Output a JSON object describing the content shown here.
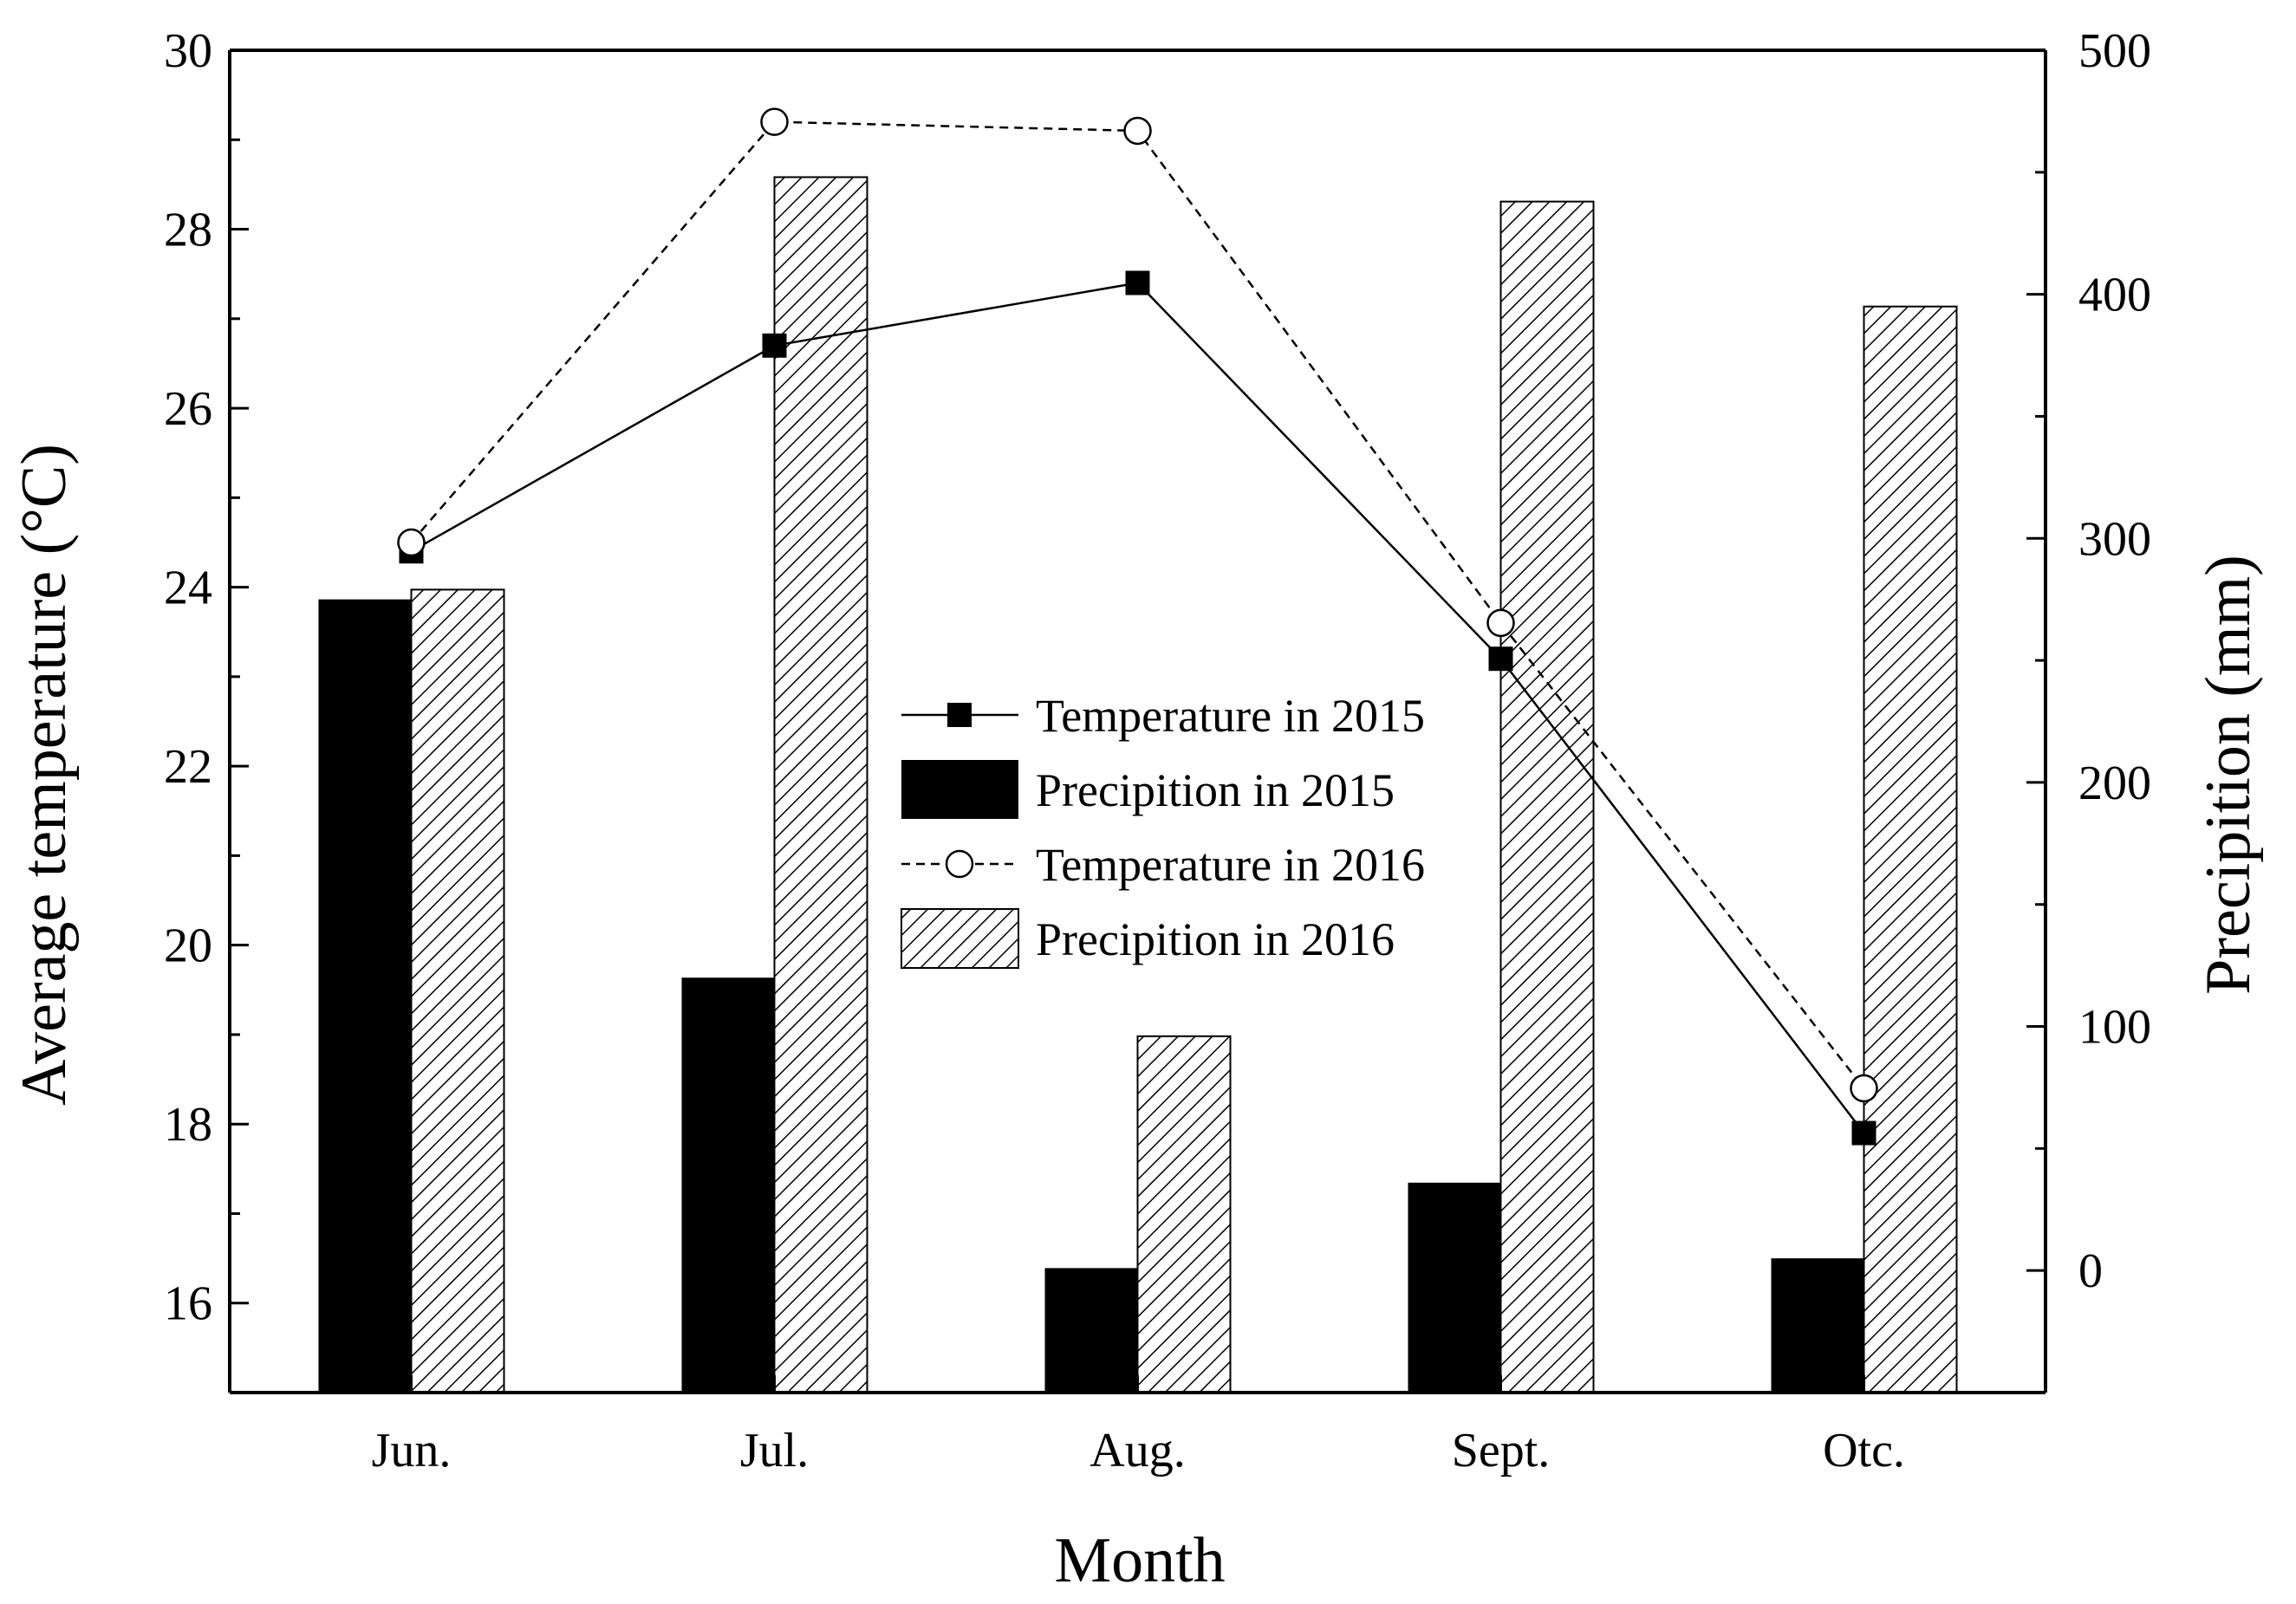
{
  "chart_data": {
    "type": "bar",
    "categories": [
      "Jun.",
      "Jul.",
      "Aug.",
      "Sept.",
      "Otc."
    ],
    "xlabel": "Month",
    "ylabel": "Average temperature (°C)",
    "y2label": "Precipition (mm)",
    "ylim": [
      15,
      30
    ],
    "y2lim": [
      -50,
      500
    ],
    "yticks": [
      16,
      18,
      20,
      22,
      24,
      26,
      28,
      30
    ],
    "y2ticks": [
      0,
      100,
      200,
      300,
      400,
      500
    ],
    "grid": false,
    "legend_position": "center",
    "series": [
      {
        "name": "Temperature in 2015",
        "kind": "line",
        "axis": "left",
        "style": "solid",
        "marker": "filled-square",
        "values": [
          24.4,
          26.7,
          27.4,
          23.2,
          17.9
        ]
      },
      {
        "name": "Precipition in 2015",
        "kind": "bar",
        "axis": "right",
        "fill": "solid-black",
        "values": [
          275,
          120,
          1,
          36,
          5
        ]
      },
      {
        "name": "Temperature in 2016",
        "kind": "line",
        "axis": "left",
        "style": "dashed",
        "marker": "open-circle",
        "values": [
          24.5,
          29.2,
          29.1,
          23.6,
          18.4
        ]
      },
      {
        "name": "Precipition in 2016",
        "kind": "bar",
        "axis": "right",
        "fill": "hatched",
        "values": [
          279,
          448,
          96,
          438,
          395
        ]
      }
    ]
  },
  "colors": {
    "ink": "#000000",
    "background": "#ffffff"
  }
}
